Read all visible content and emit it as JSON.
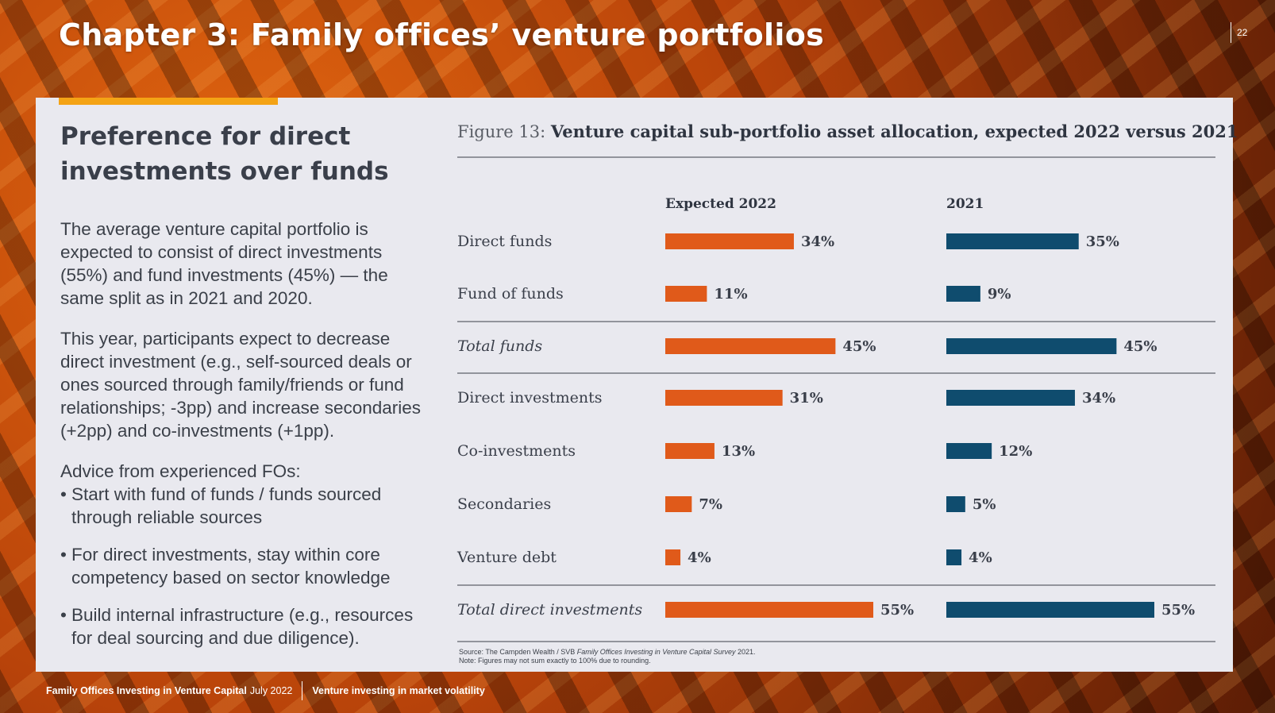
{
  "header": {
    "chapter_title": "Chapter 3: Family offices’ venture portfolios",
    "page_number": "22"
  },
  "left": {
    "heading": "Preference for direct investments over funds",
    "paragraphs": [
      "The average venture capital portfolio is expected to consist of direct investments (55%) and fund investments (45%) — the same split as in 2021 and 2020.",
      "This year, participants expect to decrease direct investment (e.g., self-sourced deals or ones sourced through family/friends or fund relationships; -3pp) and increase secondaries (+2pp) and co-investments (+1pp)."
    ],
    "advice_heading": "Advice from experienced FOs:",
    "advice_items": [
      "Start with fund of funds / funds sourced through reliable sources",
      "For direct investments, stay within core competency based on sector knowledge",
      "Build internal infrastructure (e.g., resources for deal sourcing and due diligence)."
    ]
  },
  "figure": {
    "label": "Figure 13:",
    "title": "Venture capital sub-portfolio asset allocation, expected 2022 versus 2021"
  },
  "chart_data": {
    "type": "bar",
    "orientation": "horizontal",
    "title": "Venture capital sub-portfolio asset allocation, expected 2022 versus 2021",
    "unit": "%",
    "categories": [
      "Direct funds",
      "Fund of funds",
      "Total funds",
      "Direct investments",
      "Co-investments",
      "Secondaries",
      "Venture debt",
      "Total direct investments"
    ],
    "italic_categories": [
      "Total funds",
      "Total direct investments"
    ],
    "series": [
      {
        "name": "Expected 2022",
        "color": "#e05a1a",
        "values": [
          34,
          11,
          45,
          31,
          13,
          7,
          4,
          55
        ]
      },
      {
        "name": "2021",
        "color": "#0f4c6e",
        "values": [
          35,
          9,
          45,
          34,
          12,
          5,
          4,
          55
        ]
      }
    ],
    "xlim": [
      0,
      55
    ]
  },
  "source": {
    "prefix": "Source: The Campden Wealth / SVB ",
    "survey": "Family Offices Investing in Venture Capital Survey",
    "suffix": " 2021.",
    "note": "Note: Figures may not sum exactly to 100% due to rounding."
  },
  "footer": {
    "publication": "Family Offices Investing in Venture Capital",
    "date": "July 2022",
    "section": "Venture investing in market volatility"
  }
}
